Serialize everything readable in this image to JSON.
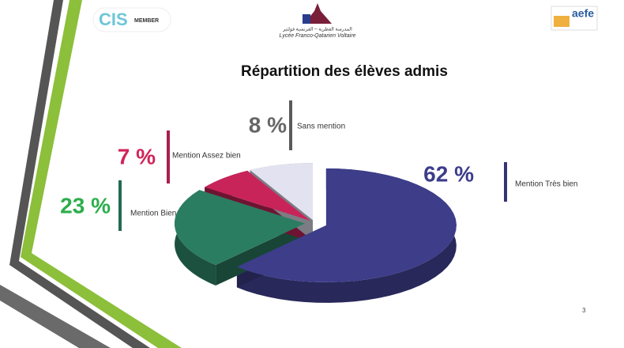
{
  "header": {
    "cis": "CIS",
    "cis_member": "MEMBER",
    "school_arabic": "المدرسة القطرية – الفرنسية فولتير",
    "school_name": "Lycée Franco-Qatarien Voltaire",
    "aefe": "aefe"
  },
  "page_number": "3",
  "chart_data": {
    "type": "pie",
    "title": "Répartition des élèves admis",
    "categories": [
      "Mention Très bien",
      "Mention Bien",
      "Mention Assez bien",
      "Sans mention"
    ],
    "values": [
      62,
      23,
      7,
      8
    ],
    "value_labels": [
      "62 %",
      "23 %",
      "7 %",
      "8 %"
    ],
    "colors": [
      "#3d3d8a",
      "#2b7d62",
      "#c8245a",
      "#e2e2f0"
    ],
    "label_colors": [
      "#3c3c8c",
      "#2cae4c",
      "#d0245a",
      "#666666"
    ]
  }
}
